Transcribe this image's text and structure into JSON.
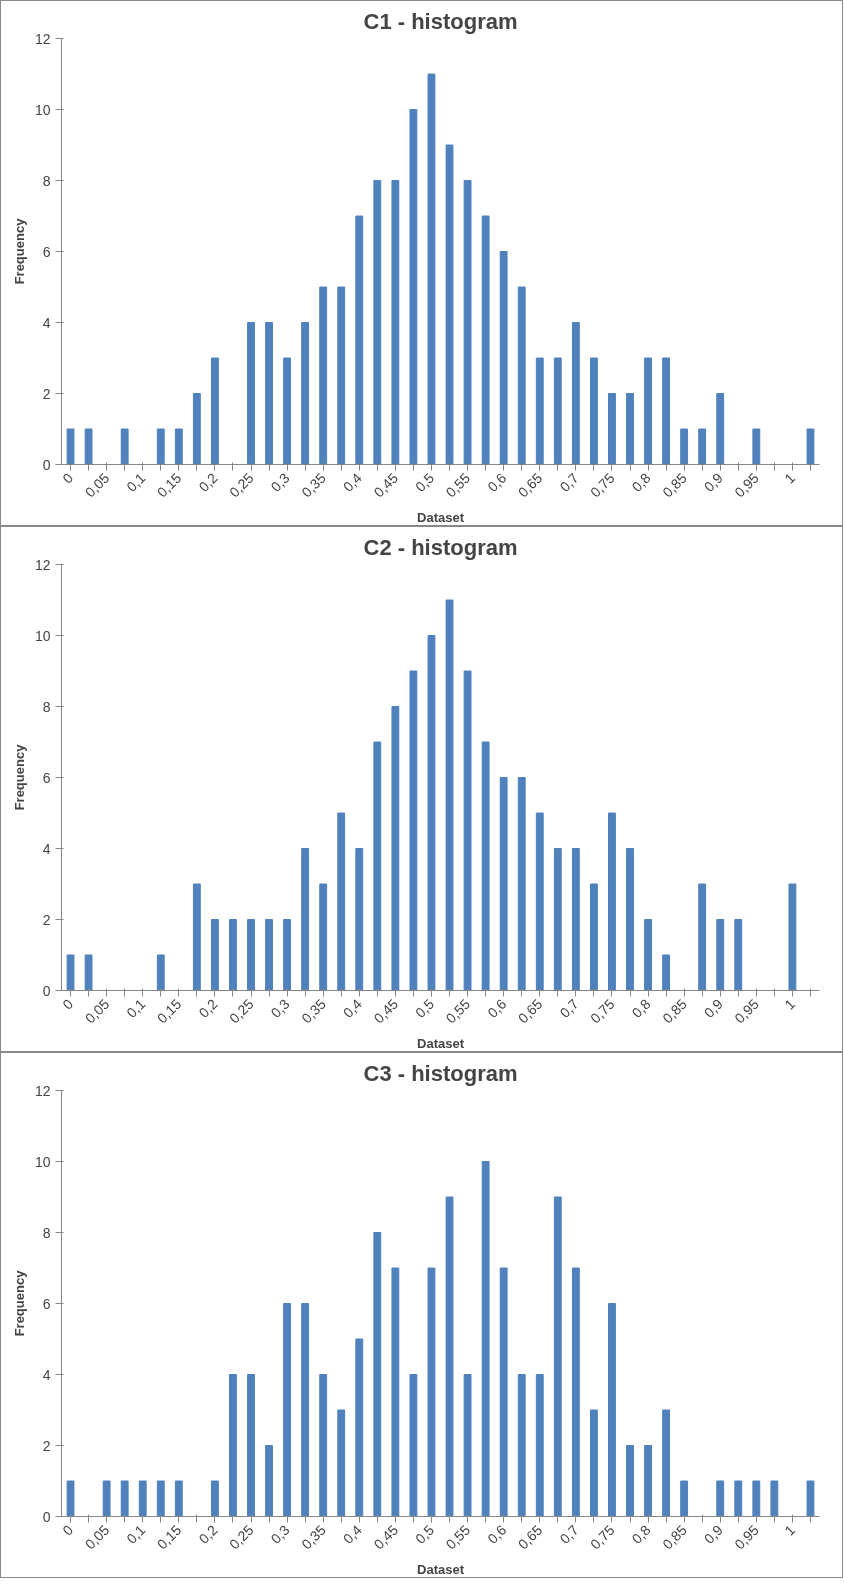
{
  "chart_data": [
    {
      "type": "bar",
      "title": "C1 - histogram",
      "xlabel": "Dataset",
      "ylabel": "Frequency",
      "categories": [
        "0",
        null,
        "0,05",
        null,
        "0,1",
        null,
        "0,15",
        null,
        "0,2",
        null,
        "0,25",
        null,
        "0,3",
        null,
        "0,35",
        null,
        "0,4",
        null,
        "0,45",
        null,
        "0,5",
        null,
        "0,55",
        null,
        "0,6",
        null,
        "0,65",
        null,
        "0,7",
        null,
        "0,75",
        null,
        "0,8",
        null,
        "0,85",
        null,
        "0,9",
        null,
        "0,95",
        null,
        "1",
        null
      ],
      "color": "#4f81bd",
      "values": [
        1,
        1,
        0,
        1,
        0,
        1,
        1,
        2,
        3,
        0,
        4,
        4,
        3,
        4,
        5,
        5,
        7,
        8,
        8,
        10,
        11,
        9,
        8,
        7,
        6,
        5,
        3,
        3,
        4,
        3,
        2,
        2,
        3,
        3,
        1,
        1,
        2,
        0,
        1,
        0,
        0,
        1
      ],
      "ylim": [
        0,
        12
      ],
      "yticks": [
        0,
        2,
        4,
        6,
        8,
        10,
        12
      ],
      "grid": false
    },
    {
      "type": "bar",
      "title": "C2 - histogram",
      "xlabel": "Dataset",
      "ylabel": "Frequency",
      "categories": [
        "0",
        null,
        "0,05",
        null,
        "0,1",
        null,
        "0,15",
        null,
        "0,2",
        null,
        "0,25",
        null,
        "0,3",
        null,
        "0,35",
        null,
        "0,4",
        null,
        "0,45",
        null,
        "0,5",
        null,
        "0,55",
        null,
        "0,6",
        null,
        "0,65",
        null,
        "0,7",
        null,
        "0,75",
        null,
        "0,8",
        null,
        "0,85",
        null,
        "0,9",
        null,
        "0,95",
        null,
        "1",
        null
      ],
      "color": "#4f81bd",
      "values": [
        1,
        1,
        0,
        0,
        0,
        1,
        0,
        3,
        2,
        2,
        2,
        2,
        2,
        4,
        3,
        5,
        4,
        7,
        8,
        9,
        10,
        11,
        9,
        7,
        6,
        6,
        5,
        4,
        4,
        3,
        5,
        4,
        2,
        1,
        0,
        3,
        2,
        2,
        0,
        0,
        3,
        0
      ],
      "ylim": [
        0,
        12
      ],
      "yticks": [
        0,
        2,
        4,
        6,
        8,
        10,
        12
      ],
      "grid": false
    },
    {
      "type": "bar",
      "title": "C3 - histogram",
      "xlabel": "Dataset",
      "ylabel": "Frequency",
      "categories": [
        "0",
        null,
        "0,05",
        null,
        "0,1",
        null,
        "0,15",
        null,
        "0,2",
        null,
        "0,25",
        null,
        "0,3",
        null,
        "0,35",
        null,
        "0,4",
        null,
        "0,45",
        null,
        "0,5",
        null,
        "0,55",
        null,
        "0,6",
        null,
        "0,65",
        null,
        "0,7",
        null,
        "0,75",
        null,
        "0,8",
        null,
        "0,85",
        null,
        "0,9",
        null,
        "0,95",
        null,
        "1",
        null
      ],
      "color": "#4f81bd",
      "values": [
        1,
        0,
        1,
        1,
        1,
        1,
        1,
        0,
        1,
        4,
        4,
        2,
        6,
        6,
        4,
        3,
        5,
        8,
        7,
        4,
        7,
        9,
        4,
        10,
        7,
        4,
        4,
        9,
        7,
        3,
        6,
        2,
        2,
        3,
        1,
        0,
        1,
        1,
        1,
        1,
        0,
        1
      ],
      "ylim": [
        0,
        12
      ],
      "yticks": [
        0,
        2,
        4,
        6,
        8,
        10,
        12
      ],
      "grid": false
    }
  ]
}
